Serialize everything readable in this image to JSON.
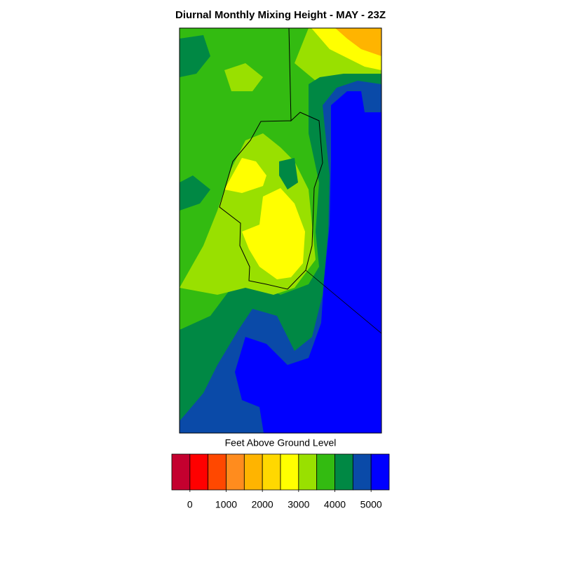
{
  "title": "Diurnal Monthly Mixing Height - MAY - 23Z",
  "colorbar": {
    "label": "Feet Above Ground Level",
    "colors": [
      "#c4002f",
      "#ff0000",
      "#ff4800",
      "#ff8c1e",
      "#ffb400",
      "#ffd800",
      "#ffff00",
      "#99e000",
      "#33bb11",
      "#008844",
      "#0a4aa8",
      "#0000ff"
    ],
    "lim": [
      -500,
      5500
    ],
    "ticks": [
      0,
      1000,
      2000,
      3000,
      4000,
      5000
    ]
  }
}
